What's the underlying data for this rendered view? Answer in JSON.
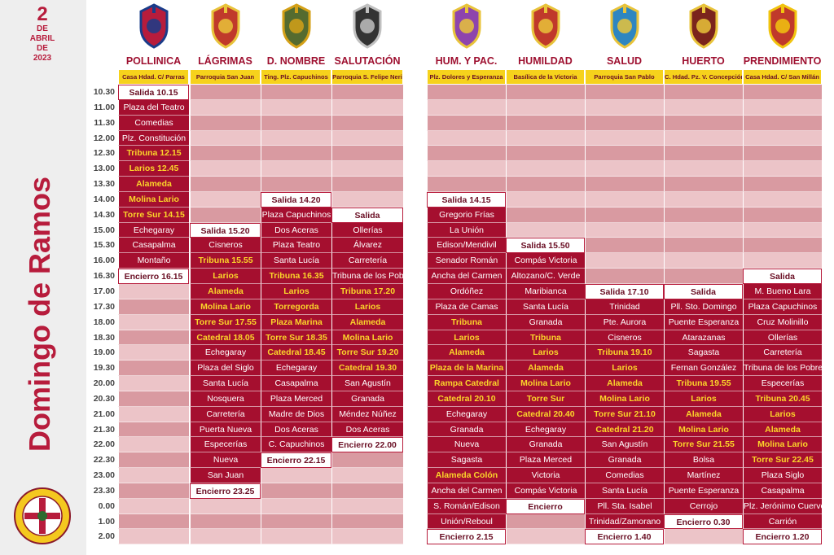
{
  "date": {
    "day": "2",
    "de1": "DE",
    "month": "ABRIL",
    "de2": "DE",
    "year": "2023"
  },
  "title": "Domingo de Ramos",
  "times": [
    "10.30",
    "11.00",
    "11.30",
    "12.00",
    "12.30",
    "13.00",
    "13.30",
    "14.00",
    "14.30",
    "15.00",
    "15.30",
    "16.00",
    "16.30",
    "17.00",
    "17.30",
    "18.00",
    "18.30",
    "19.00",
    "19.30",
    "20.00",
    "20.30",
    "21.00",
    "21.30",
    "22.00",
    "22.30",
    "23.00",
    "23.30",
    "0.00",
    "1.00",
    "2.00"
  ],
  "columns": [
    {
      "name": "POLLINICA",
      "origin": "Casa Hdad. C/ Parras",
      "start": 0,
      "cells": [
        "Salida 10.15",
        "Plaza del Teatro",
        "Comedias",
        "Plz. Constitución",
        "Tribuna 12.15",
        "Larios 12.45",
        "Alameda",
        "Molina Lario",
        "Torre Sur 14.15",
        "Echegaray",
        "Casapalma",
        "Montaño",
        "Encierro 16.15"
      ]
    },
    {
      "name": "LÁGRIMAS",
      "origin": "Parroquia San Juan",
      "start": 9,
      "cells": [
        "Salida 15.20",
        "Cisneros",
        "Tribuna 15.55",
        "Larios",
        "Alameda",
        "Molina Lario",
        "Torre Sur 17.55",
        "Catedral 18.05",
        "Echegaray",
        "Plaza del Siglo",
        "Santa Lucía",
        "Nosquera",
        "Carretería",
        "Puerta Nueva",
        "Especerías",
        "Nueva",
        "San Juan",
        "Encierro 23.25"
      ]
    },
    {
      "name": "D. NOMBRE",
      "origin": "Ting. Plz. Capuchinos",
      "start": 7,
      "cells": [
        "Salida 14.20",
        "Plaza Capuchinos",
        "Dos Aceras",
        "Plaza Teatro",
        "Santa Lucía",
        "Tribuna 16.35",
        "Larios",
        "Torregorda",
        "Plaza Marina",
        "Torre Sur 18.35",
        "Catedral 18.45",
        "Echegaray",
        "Casapalma",
        "Plaza Merced",
        "Madre de Dios",
        "Dos Aceras",
        "C. Capuchinos",
        "Encierro 22.15"
      ]
    },
    {
      "name": "SALUTACIÓN",
      "origin": "Parroquia S. Felipe Neri",
      "start": 8,
      "cells": [
        "Salida",
        "Ollerías",
        "Álvarez",
        "Carretería",
        "Tribuna de los Pobres",
        "Tribuna 17.20",
        "Larios",
        "Alameda",
        "Molina Lario",
        "Torre Sur 19.20",
        "Catedral 19.30",
        "San Agustín",
        "Granada",
        "Méndez Núñez",
        "Dos Aceras",
        "Encierro 22.00"
      ]
    },
    {
      "name": "HUM. Y PAC.",
      "origin": "Plz. Dolores y Esperanza",
      "start": 7,
      "cells": [
        "Salida 14.15",
        "Gregorio Frías",
        "La Unión",
        "Edison/Mendivil",
        "Senador Román",
        "Ancha del Carmen",
        "Ordóñez",
        "Plaza de Camas",
        "Tribuna",
        "Larios",
        "Alameda",
        "Plaza de la Marina",
        "Rampa Catedral",
        "Catedral 20.10",
        "Echegaray",
        "Granada",
        "Nueva",
        "Sagasta",
        "Alameda Colón",
        "Ancha del Carmen",
        "S. Román/Edison",
        "Unión/Reboul",
        "Encierro 2.15"
      ]
    },
    {
      "name": "HUMILDAD",
      "origin": "Basílica de la Victoria",
      "start": 10,
      "cells": [
        "Salida 15.50",
        "Compás Victoria",
        "Altozano/C. Verde",
        "Maribianca",
        "Santa Lucía",
        "Granada",
        "Tribuna",
        "Larios",
        "Alameda",
        "Molina Lario",
        "Torre Sur",
        "Catedral 20.40",
        "Echegaray",
        "Granada",
        "Plaza Merced",
        "Victoria",
        "Compás Victoria",
        "Encierro"
      ]
    },
    {
      "name": "SALUD",
      "origin": "Parroquia San Pablo",
      "start": 13,
      "cells": [
        "Salida 17.10",
        "Trinidad",
        "Pte. Aurora",
        "Cisneros",
        "Tribuna 19.10",
        "Larios",
        "Alameda",
        "Molina Lario",
        "Torre Sur 21.10",
        "Catedral 21.20",
        "San Agustín",
        "Granada",
        "Comedias",
        "Santa Lucía",
        "Pll. Sta. Isabel",
        "Trinidad/Zamorano",
        "Encierro 1.40"
      ]
    },
    {
      "name": "HUERTO",
      "origin": "C. Hdad. Pz. V. Concepción",
      "start": 13,
      "cells": [
        "Salida",
        "Pll. Sto. Domingo",
        "Puente Esperanza",
        "Atarazanas",
        "Sagasta",
        "Fernan González",
        "Tribuna 19.55",
        "Larios",
        "Alameda",
        "Molina Lario",
        "Torre Sur 21.55",
        "Bolsa",
        "Martínez",
        "Puente Esperanza",
        "Cerrojo",
        "Encierro 0.30"
      ]
    },
    {
      "name": "PRENDIMIENTO",
      "origin": "Casa Hdad. C/ San Millán",
      "start": 12,
      "cells": [
        "Salida",
        "M. Bueno Lara",
        "Plaza Capuchinos",
        "Cruz Molinillo",
        "Ollerías",
        "Carretería",
        "Tribuna de los Pobres",
        "Especerías",
        "Tribuna 20.45",
        "Larios",
        "Alameda",
        "Molina Lario",
        "Torre Sur 22.45",
        "Plaza Siglo",
        "Casapalma",
        "Plz. Jerónimo Cuervo",
        "Carrión",
        "Encierro 1.20"
      ]
    }
  ],
  "colors": {
    "dark": "#a50f2f",
    "highlight_text": "#fbd52a",
    "origin_bar": "#f6d21c",
    "empty_a": "#d99aa1",
    "empty_b": "#ecc4c8",
    "title": "#b71c3c"
  },
  "icons": [
    "emblem-pollinica-icon",
    "emblem-lagrimas-icon",
    "emblem-dnombre-icon",
    "emblem-salutacion-icon",
    "emblem-humypac-icon",
    "emblem-humildad-icon",
    "emblem-salud-icon",
    "emblem-huerto-icon",
    "emblem-prendimiento-icon",
    "agrupacion-cofradias-seal-icon"
  ]
}
